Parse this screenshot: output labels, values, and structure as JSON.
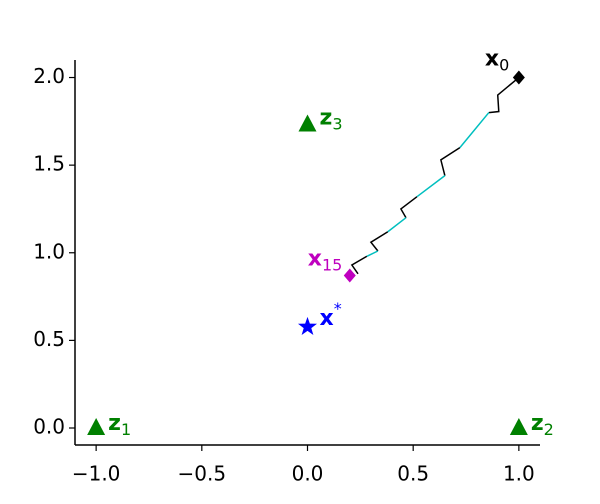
{
  "chart_data": {
    "type": "scatter",
    "xlim": [
      -1.1,
      1.1
    ],
    "ylim": [
      -0.097,
      2.1
    ],
    "xticks": [
      {
        "value": -1,
        "label": "−1.0"
      },
      {
        "value": -0.5,
        "label": "−0.5"
      },
      {
        "value": 0,
        "label": "0.0"
      },
      {
        "value": 0.5,
        "label": "0.5"
      },
      {
        "value": 1,
        "label": "1.0"
      }
    ],
    "yticks": [
      {
        "value": 0,
        "label": "0.0"
      },
      {
        "value": 0.5,
        "label": "0.5"
      },
      {
        "value": 1,
        "label": "1.0"
      },
      {
        "value": 1.5,
        "label": "1.5"
      },
      {
        "value": 2,
        "label": "2.0"
      }
    ],
    "lines": [
      {
        "color": "#000000",
        "x": [
          1.0,
          0.9,
          0.905,
          0.858,
          null,
          0.721,
          0.631,
          0.65,
          null,
          0.518,
          0.442,
          0.466,
          null,
          0.38,
          0.3,
          0.333,
          null,
          0.281,
          0.21,
          0.239
        ],
        "y": [
          2.0,
          1.9,
          1.806,
          1.8,
          null,
          1.6,
          1.53,
          1.44,
          null,
          1.32,
          1.25,
          1.2,
          null,
          1.12,
          1.06,
          1.01,
          null,
          0.98,
          0.93,
          0.88
        ]
      },
      {
        "color": "#00bfbf",
        "x": [
          0.858,
          0.721,
          null,
          0.65,
          0.518,
          null,
          0.466,
          0.38,
          null,
          0.333,
          0.281
        ],
        "y": [
          1.8,
          1.6,
          null,
          1.44,
          1.32,
          null,
          1.2,
          1.12,
          null,
          1.01,
          0.98
        ]
      }
    ],
    "points": [
      {
        "label": "z",
        "sub": "1",
        "x": -1,
        "y": 0,
        "marker": "triangle",
        "color": "#008000"
      },
      {
        "label": "z",
        "sub": "2",
        "x": 1,
        "y": 0,
        "marker": "triangle",
        "color": "#008000"
      },
      {
        "label": "z",
        "sub": "3",
        "x": 0,
        "y": 1.732,
        "marker": "triangle",
        "color": "#008000"
      },
      {
        "label": "x",
        "sup": "*",
        "x": 0,
        "y": 0.577,
        "marker": "star",
        "color": "#0000ff"
      },
      {
        "label": "x",
        "sub": "0",
        "x": 1,
        "y": 2,
        "marker": "diamond",
        "color": "#000000"
      },
      {
        "label": "x",
        "sub": "15",
        "x": 0.2,
        "y": 0.87,
        "marker": "diamond",
        "color": "#bf00bf"
      }
    ]
  }
}
